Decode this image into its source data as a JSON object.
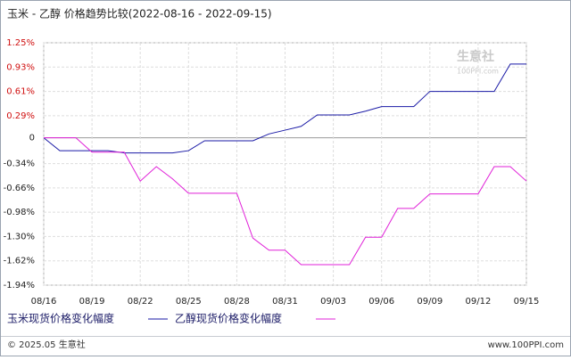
{
  "chart_data": {
    "type": "line",
    "title": "玉米 - 乙醇 价格趋势比较(2022-08-16 - 2022-09-15)",
    "categories": [
      "08/16",
      null,
      null,
      "08/19",
      null,
      null,
      "08/22",
      null,
      null,
      "08/25",
      null,
      null,
      "08/28",
      null,
      null,
      "08/31",
      null,
      null,
      "09/03",
      null,
      null,
      "09/06",
      null,
      null,
      "09/09",
      null,
      null,
      "09/12",
      null,
      null,
      "09/15"
    ],
    "series": [
      {
        "name": "玉米现货价格变化幅度",
        "color": "#1a1aa6",
        "values": [
          0,
          -0.17,
          -0.17,
          -0.17,
          -0.17,
          -0.2,
          -0.2,
          -0.2,
          -0.2,
          -0.17,
          -0.04,
          -0.04,
          -0.04,
          -0.04,
          0.05,
          0.1,
          0.15,
          0.3,
          0.3,
          0.3,
          0.35,
          0.41,
          0.41,
          0.41,
          0.61,
          0.61,
          0.61,
          0.61,
          0.61,
          0.97,
          0.97
        ]
      },
      {
        "name": "乙醇现货价格变化幅度",
        "color": "#e020d8",
        "values": [
          0,
          0,
          0,
          -0.19,
          -0.19,
          -0.19,
          -0.57,
          -0.38,
          -0.54,
          -0.73,
          -0.73,
          -0.73,
          -0.73,
          -1.32,
          -1.48,
          -1.48,
          -1.67,
          -1.67,
          -1.67,
          -1.67,
          -1.31,
          -1.31,
          -0.93,
          -0.93,
          -0.74,
          -0.74,
          -0.74,
          -0.74,
          -0.38,
          -0.38,
          -0.57
        ]
      }
    ],
    "ylim": [
      -1.94,
      1.25
    ],
    "yticks": [
      {
        "value": 1.25,
        "label": "1.25%"
      },
      {
        "value": 0.93,
        "label": "0.93%"
      },
      {
        "value": 0.61,
        "label": "0.61%"
      },
      {
        "value": 0.29,
        "label": "0.29%"
      },
      0,
      {
        "value": -0.34,
        "label": "-0.34%"
      },
      {
        "value": -0.66,
        "label": "-0.66%"
      },
      {
        "value": -0.98,
        "label": "-0.98%"
      },
      {
        "value": -1.3,
        "label": "-1.30%"
      },
      {
        "value": -1.62,
        "label": "-1.62%"
      },
      {
        "value": -1.94,
        "label": "-1.94%"
      }
    ],
    "grid": true,
    "watermark": [
      "生意社",
      "100PPI.com"
    ],
    "footer_left": "© 2025.05 生意社",
    "footer_right": "www.100PPI.com"
  }
}
